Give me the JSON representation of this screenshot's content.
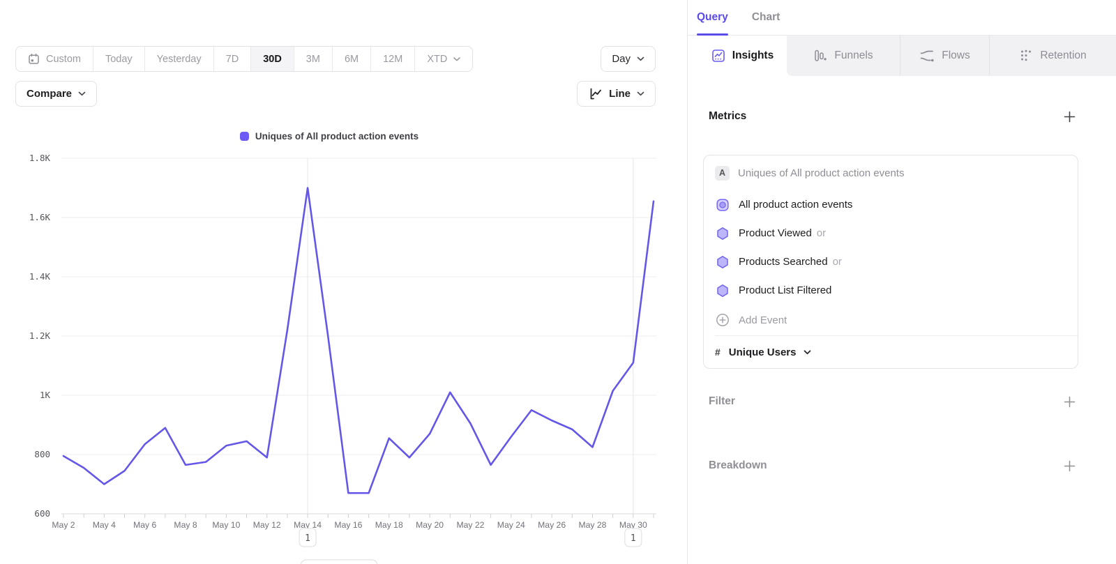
{
  "accent": "#6c5af5",
  "toolbar": {
    "ranges": [
      "Custom",
      "Today",
      "Yesterday",
      "7D",
      "30D",
      "3M",
      "6M",
      "12M",
      "XTD"
    ],
    "active_range": "30D",
    "granularity": "Day",
    "compare_label": "Compare",
    "chart_type": "Line"
  },
  "legend": {
    "label": "Uniques of All product action events"
  },
  "chart_data": {
    "type": "line",
    "title": "",
    "xlabel": "",
    "ylabel": "",
    "x": [
      "May 2",
      "May 3",
      "May 4",
      "May 5",
      "May 6",
      "May 7",
      "May 8",
      "May 9",
      "May 10",
      "May 11",
      "May 12",
      "May 13",
      "May 14",
      "May 15",
      "May 16",
      "May 17",
      "May 18",
      "May 19",
      "May 20",
      "May 21",
      "May 22",
      "May 23",
      "May 24",
      "May 25",
      "May 26",
      "May 27",
      "May 28",
      "May 29",
      "May 30",
      "May 31"
    ],
    "series": [
      {
        "name": "Uniques of All product action events",
        "color": "#6457e8",
        "values": [
          795,
          755,
          700,
          745,
          835,
          890,
          765,
          775,
          830,
          845,
          790,
          1220,
          1700,
          1200,
          670,
          670,
          855,
          790,
          870,
          1010,
          905,
          765,
          860,
          950,
          915,
          885,
          825,
          1015,
          1110,
          1655
        ]
      }
    ],
    "ylim": [
      600,
      1800
    ],
    "yticks": [
      {
        "v": 600,
        "label": "600"
      },
      {
        "v": 800,
        "label": "800"
      },
      {
        "v": 1000,
        "label": "1K"
      },
      {
        "v": 1200,
        "label": "1.2K"
      },
      {
        "v": 1400,
        "label": "1.4K"
      },
      {
        "v": 1600,
        "label": "1.6K"
      },
      {
        "v": 1800,
        "label": "1.8K"
      }
    ],
    "xtick_label_every": 2,
    "grid": "horizontal",
    "legend_position": "top",
    "annotations": [
      {
        "index": 12,
        "date": "May 14",
        "badge": "1",
        "popover_edge_visible": true
      },
      {
        "index": 28,
        "date": "May 30",
        "badge": "1",
        "popover_edge_visible": false
      }
    ]
  },
  "query_panel": {
    "header_tabs": [
      {
        "label": "Query",
        "active": true
      },
      {
        "label": "Chart",
        "active": false
      }
    ],
    "report_tabs": [
      {
        "label": "Insights",
        "icon": "insights",
        "active": true
      },
      {
        "label": "Funnels",
        "icon": "funnels",
        "active": false
      },
      {
        "label": "Flows",
        "icon": "flows",
        "active": false
      },
      {
        "label": "Retention",
        "icon": "retention",
        "active": false
      }
    ],
    "metrics": {
      "title": "Metrics",
      "group_badge": "A",
      "group_label": "Uniques of All product action events",
      "events": [
        {
          "label": "All product action events",
          "suffix": "",
          "icon": "all-events"
        },
        {
          "label": "Product Viewed",
          "suffix": "or",
          "icon": "hexagon"
        },
        {
          "label": "Products Searched",
          "suffix": "or",
          "icon": "hexagon"
        },
        {
          "label": "Product List Filtered",
          "suffix": "",
          "icon": "hexagon"
        }
      ],
      "add_event_label": "Add Event",
      "aggregation": {
        "symbol": "#",
        "label": "Unique Users"
      }
    },
    "sections": [
      {
        "title": "Filter"
      },
      {
        "title": "Breakdown"
      }
    ]
  }
}
